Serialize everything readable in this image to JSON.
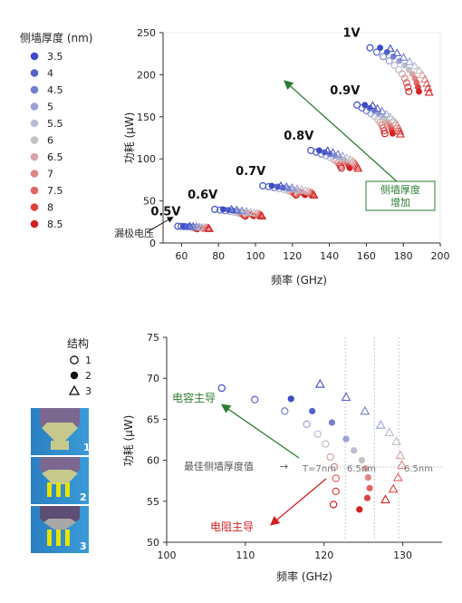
{
  "legend_top": {
    "title": "侧墙厚度 (nm)",
    "items": [
      {
        "label": "3.5",
        "color": "#3b4bc8"
      },
      {
        "label": "4",
        "color": "#5562c9"
      },
      {
        "label": "4.5",
        "color": "#7480cf"
      },
      {
        "label": "5",
        "color": "#9aa2d6"
      },
      {
        "label": "5.5",
        "color": "#b9bcd3"
      },
      {
        "label": "6",
        "color": "#c2c2c2"
      },
      {
        "label": "6.5",
        "color": "#d9a3a3"
      },
      {
        "label": "7",
        "color": "#de8585"
      },
      {
        "label": "7.5",
        "color": "#e06666"
      },
      {
        "label": "8",
        "color": "#dc4444"
      },
      {
        "label": "8.5",
        "color": "#d42020"
      }
    ]
  },
  "legend_bottom": {
    "title": "结构",
    "items": [
      {
        "label": "1",
        "marker": "open-circle"
      },
      {
        "label": "2",
        "marker": "filled-circle"
      },
      {
        "label": "3",
        "marker": "triangle"
      }
    ],
    "structure_labels": [
      "1",
      "2",
      "3"
    ]
  },
  "chart_data": [
    {
      "type": "scatter",
      "xlabel": "频率 (GHz)",
      "ylabel": "功耗 (μW)",
      "xlim": [
        50,
        200
      ],
      "ylim": [
        0,
        250
      ],
      "xticks": [
        60,
        80,
        100,
        120,
        140,
        160,
        180,
        200
      ],
      "yticks": [
        0,
        50,
        100,
        150,
        200,
        250
      ],
      "groups": [
        {
          "label": "0.5V",
          "start": [
            58,
            20
          ],
          "end": [
            72,
            17
          ]
        },
        {
          "label": "0.6V",
          "start": [
            78,
            40
          ],
          "end": [
            100,
            32
          ]
        },
        {
          "label": "0.7V",
          "start": [
            104,
            68
          ],
          "end": [
            128,
            57
          ]
        },
        {
          "label": "0.8V",
          "start": [
            130,
            110
          ],
          "end": [
            152,
            89
          ]
        },
        {
          "label": "0.9V",
          "start": [
            155,
            164
          ],
          "end": [
            175,
            130
          ]
        },
        {
          "label": "1V",
          "start": [
            162,
            232
          ],
          "end": [
            190,
            180
          ]
        }
      ],
      "annotations": {
        "drain_voltage": "漏极电压",
        "trend_box_line1": "侧墙厚度",
        "trend_box_line2": "增加"
      }
    },
    {
      "type": "scatter",
      "xlabel": "频率 (GHz)",
      "ylabel": "功耗 (μW)",
      "xlim": [
        100,
        135
      ],
      "ylim": [
        50,
        75
      ],
      "xticks": [
        100,
        110,
        120,
        130
      ],
      "yticks": [
        50,
        55,
        60,
        65,
        70,
        75
      ],
      "series": [
        {
          "name": "1",
          "marker": "open-circle",
          "points": [
            [
              107,
              68.8
            ],
            [
              111.2,
              67.4
            ],
            [
              115,
              66
            ],
            [
              117.8,
              64.4
            ],
            [
              119.2,
              63.2
            ],
            [
              120.2,
              62
            ],
            [
              120.8,
              60.4
            ],
            [
              121.3,
              59.2
            ],
            [
              121.5,
              57.8
            ],
            [
              121.5,
              56.2
            ],
            [
              121.2,
              54.6
            ]
          ]
        },
        {
          "name": "2",
          "marker": "filled-circle",
          "points": [
            [
              115.8,
              67.5
            ],
            [
              118.5,
              66
            ],
            [
              121,
              64.6
            ],
            [
              122.8,
              62.6
            ],
            [
              123.8,
              61.2
            ],
            [
              124.8,
              60
            ],
            [
              125.3,
              59
            ],
            [
              125.6,
              57.9
            ],
            [
              125.8,
              56.6
            ],
            [
              125.5,
              55.4
            ],
            [
              124.5,
              54
            ]
          ]
        },
        {
          "name": "3",
          "marker": "triangle",
          "points": [
            [
              119.5,
              69.3
            ],
            [
              122.8,
              67.7
            ],
            [
              125.2,
              66
            ],
            [
              127.2,
              64.3
            ],
            [
              128.3,
              63.4
            ],
            [
              129.2,
              62.3
            ],
            [
              129.7,
              60.6
            ],
            [
              129.9,
              59.4
            ],
            [
              129.4,
              57.9
            ],
            [
              128.8,
              56.5
            ],
            [
              127.8,
              55.2
            ]
          ]
        }
      ],
      "vlines": [
        122.7,
        126.4,
        129.5
      ],
      "hline": 59.2,
      "annotations": {
        "capacitance": "电容主导",
        "resistance": "电阻主导",
        "optimal": "最佳侧墙厚度值",
        "arrow": "→",
        "t7": "T=7nm",
        "t65a": "6.5nm",
        "t65b": "6.5nm"
      }
    }
  ]
}
